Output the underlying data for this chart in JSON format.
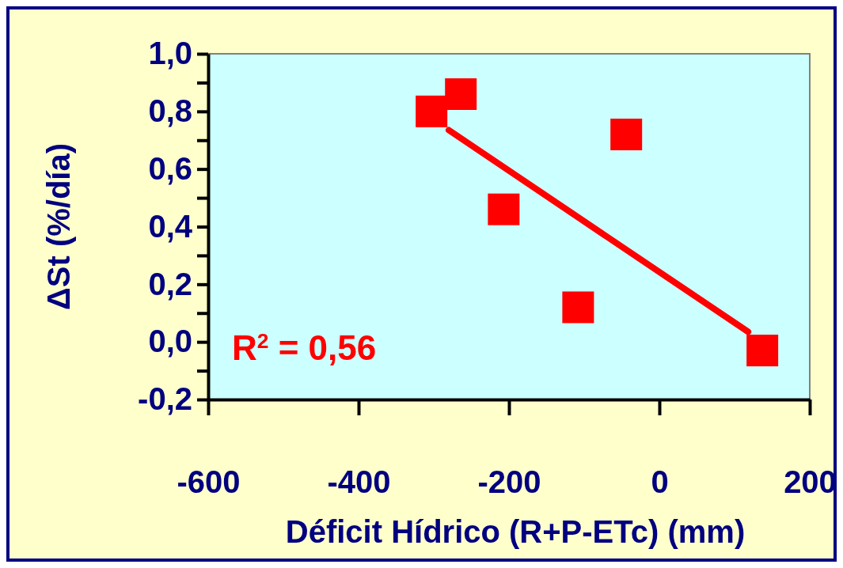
{
  "chart_data": {
    "type": "scatter",
    "xlabel": "Déficit Hídrico (R+P-ETc) (mm)",
    "ylabel": "ΔSt (%/día)",
    "marker": "square",
    "grid": false,
    "xlim": [
      -600,
      200
    ],
    "ylim": [
      -0.2,
      1.0
    ],
    "xticks": [
      -600,
      -400,
      -200,
      0,
      200
    ],
    "yticks": [
      {
        "value": -0.2,
        "label": "-0,2"
      },
      {
        "value": -0.1,
        "label": null
      },
      {
        "value": 0,
        "label": "0,0"
      },
      {
        "value": 0.1,
        "label": null
      },
      {
        "value": 0.2,
        "label": "0,2"
      },
      {
        "value": 0.3,
        "label": null
      },
      {
        "value": 0.4,
        "label": "0,4"
      },
      {
        "value": 0.5,
        "label": null
      },
      {
        "value": 0.6,
        "label": "0,6"
      },
      {
        "value": 0.7,
        "label": null
      },
      {
        "value": 0.8,
        "label": "0,8"
      },
      {
        "value": 0.9,
        "label": null
      },
      {
        "value": 1.0,
        "label": "1,0"
      }
    ],
    "annotations": [
      "R$^{2}$ = 0,56"
    ],
    "series": [
      {
        "color": "#ff0000",
        "x": [
          -303,
          -264,
          -207,
          -44,
          -108,
          137
        ],
        "values": [
          0.8,
          0.86,
          0.46,
          0.72,
          0.12,
          -0.03
        ]
      },
      {
        "type": "line",
        "color": "#ff0000",
        "marker": "none",
        "x": [
          -280,
          118
        ],
        "values": [
          0.735,
          0.035
        ]
      }
    ]
  }
}
